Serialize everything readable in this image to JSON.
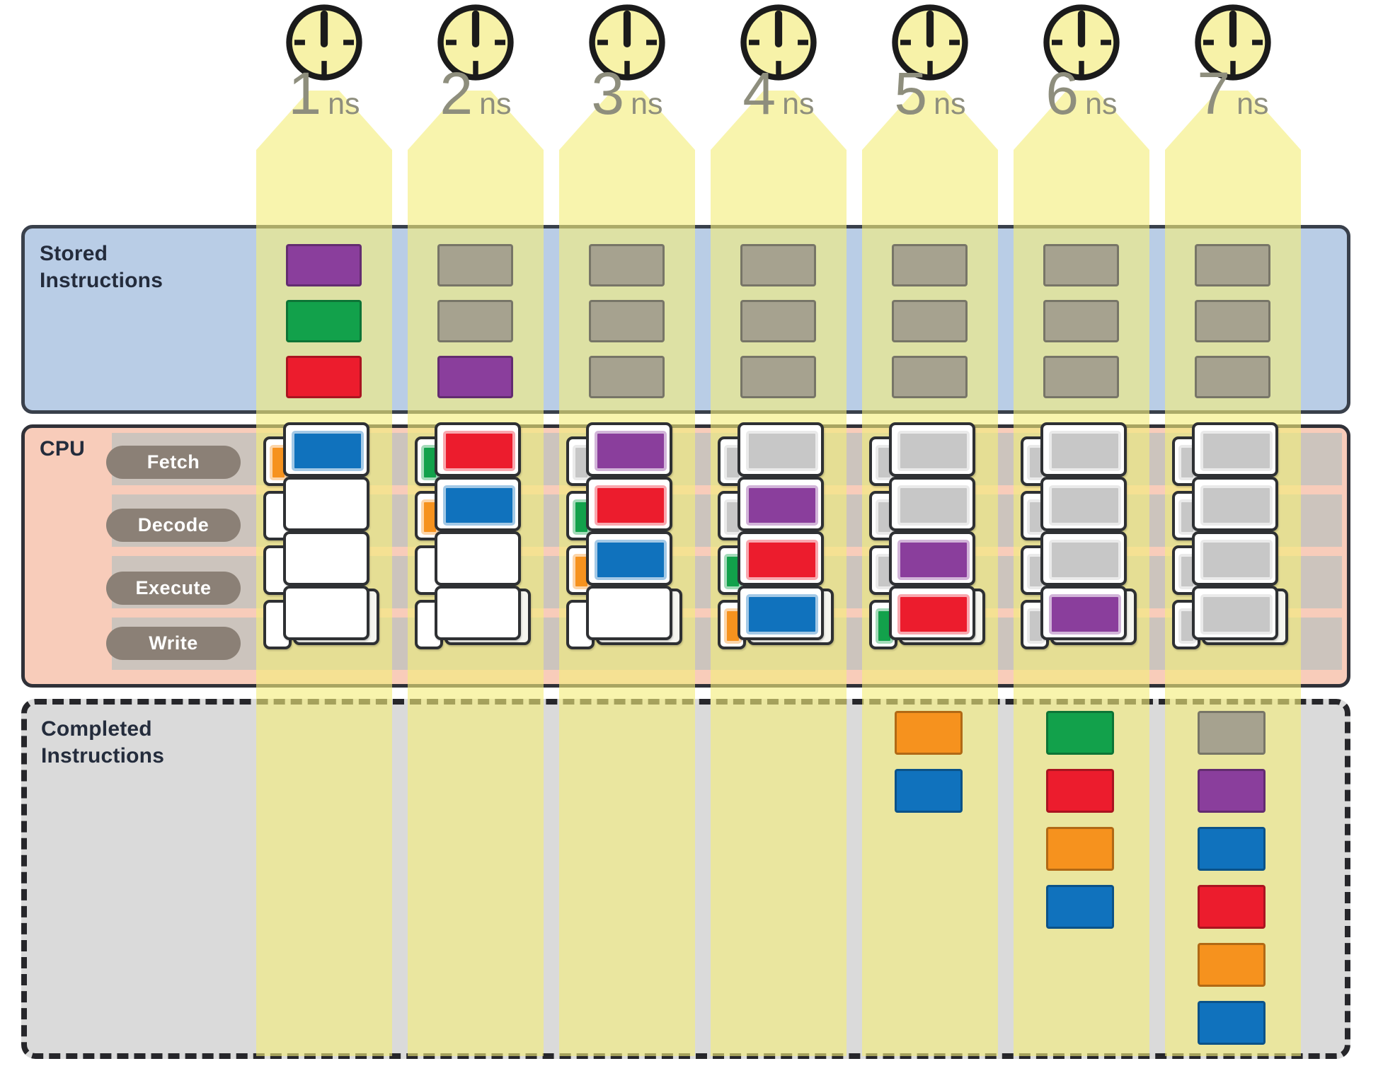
{
  "colors": {
    "purple": "#8a3e9c",
    "green": "#12a14b",
    "red": "#ec1c2d",
    "blue": "#1072bd",
    "orange": "#f6921e",
    "silver": "#c7c7c7",
    "olive": "#a6a28f",
    "band_yellow": "rgba(244,237,122,0.62)",
    "panel_blue": "#b9cde6",
    "panel_pink": "#f8ccba",
    "panel_gray": "#dadada",
    "track_gray": "#ccc4bd",
    "pill_gray": "#8b8076",
    "clock_face": "#f7f2a8",
    "time_text": "#8e8e7d",
    "label_text": "#242c3c"
  },
  "columns": [
    {
      "time": "1",
      "unit": "ns"
    },
    {
      "time": "2",
      "unit": "ns"
    },
    {
      "time": "3",
      "unit": "ns"
    },
    {
      "time": "4",
      "unit": "ns"
    },
    {
      "time": "5",
      "unit": "ns"
    },
    {
      "time": "6",
      "unit": "ns"
    },
    {
      "time": "7",
      "unit": "ns"
    }
  ],
  "stored_panel": {
    "label_line1": "Stored",
    "label_line2": "Instructions",
    "blocks": [
      [
        "purple",
        "green",
        "red"
      ],
      [
        "olive",
        "olive",
        "purple"
      ],
      [
        "olive",
        "olive",
        "olive"
      ],
      [
        "olive",
        "olive",
        "olive"
      ],
      [
        "olive",
        "olive",
        "olive"
      ],
      [
        "olive",
        "olive",
        "olive"
      ],
      [
        "olive",
        "olive",
        "olive"
      ]
    ]
  },
  "cpu_panel": {
    "label": "CPU",
    "stages": [
      "Fetch",
      "Decode",
      "Execute",
      "Write"
    ],
    "pipeline": [
      [
        {
          "main": "blue",
          "tab": "orange"
        },
        {
          "main": "empty",
          "tab": "none"
        },
        {
          "main": "empty",
          "tab": "none"
        },
        {
          "main": "empty",
          "tab": "none"
        }
      ],
      [
        {
          "main": "red",
          "tab": "green"
        },
        {
          "main": "blue",
          "tab": "orange"
        },
        {
          "main": "empty",
          "tab": "none"
        },
        {
          "main": "empty",
          "tab": "none"
        }
      ],
      [
        {
          "main": "purple",
          "tab": "silver"
        },
        {
          "main": "red",
          "tab": "green"
        },
        {
          "main": "blue",
          "tab": "orange"
        },
        {
          "main": "empty",
          "tab": "none"
        }
      ],
      [
        {
          "main": "silver",
          "tab": "silver"
        },
        {
          "main": "purple",
          "tab": "silver"
        },
        {
          "main": "red",
          "tab": "green"
        },
        {
          "main": "blue",
          "tab": "orange"
        }
      ],
      [
        {
          "main": "silver",
          "tab": "silver"
        },
        {
          "main": "silver",
          "tab": "silver"
        },
        {
          "main": "purple",
          "tab": "silver"
        },
        {
          "main": "red",
          "tab": "green"
        }
      ],
      [
        {
          "main": "silver",
          "tab": "silver"
        },
        {
          "main": "silver",
          "tab": "silver"
        },
        {
          "main": "silver",
          "tab": "silver"
        },
        {
          "main": "purple",
          "tab": "silver"
        }
      ],
      [
        {
          "main": "silver",
          "tab": "silver"
        },
        {
          "main": "silver",
          "tab": "silver"
        },
        {
          "main": "silver",
          "tab": "silver"
        },
        {
          "main": "silver",
          "tab": "silver"
        }
      ]
    ]
  },
  "completed_panel": {
    "label_line1": "Completed",
    "label_line2": "Instructions",
    "blocks": [
      [],
      [],
      [],
      [],
      [
        "orange",
        "blue"
      ],
      [
        "green",
        "red",
        "orange",
        "blue"
      ],
      [
        "olive",
        "purple",
        "blue",
        "red",
        "orange",
        "blue"
      ]
    ]
  }
}
